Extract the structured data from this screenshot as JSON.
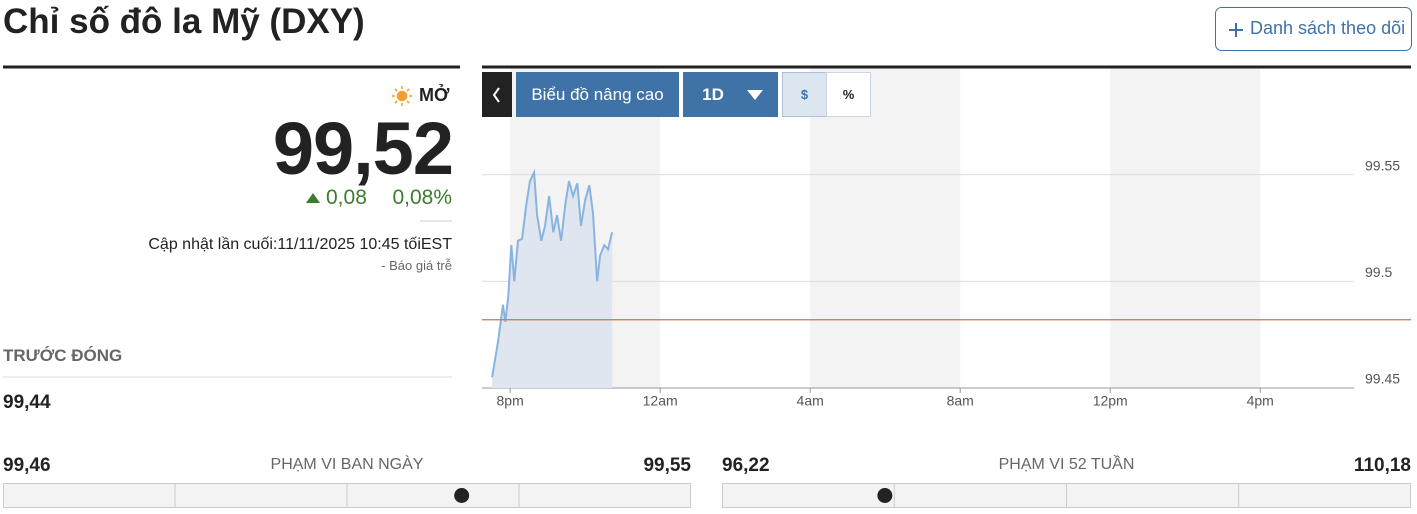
{
  "header": {
    "title": "Chỉ số đô la Mỹ (DXY)",
    "watchlist_button": "Danh sách theo dõi"
  },
  "quote": {
    "status": "MỞ",
    "price": {
      "value": 99.52,
      "label": "99,52"
    },
    "change": "0,08",
    "change_percent": "0,08%",
    "updated": "Cập nhật lần cuối:11/11/2025 10:45 tốiEST",
    "delay_note": "-  Báo giá trễ"
  },
  "previous_close": {
    "label": "TRƯỚC ĐÓNG",
    "value": "99,44"
  },
  "day_range": {
    "label": "PHẠM VI BAN NGÀY",
    "low": {
      "value": 99.46,
      "label": "99,46"
    },
    "high": {
      "value": 99.55,
      "label": "99,55"
    }
  },
  "week52_range": {
    "label": "PHẠM VI 52 TUẦN",
    "low": {
      "value": 96.22,
      "label": "96,22"
    },
    "high": {
      "value": 110.18,
      "label": "110,18"
    }
  },
  "chart_controls": {
    "advanced": "Biểu đồ nâng cao",
    "interval": "1D",
    "dollar": "$",
    "percent": "%"
  },
  "chart_data": {
    "type": "area",
    "color": "#8ab4e0",
    "fill": "#dfe6ef",
    "reference_line": 99.482,
    "reference_color": "#d9703e",
    "x": [
      19.52,
      19.68,
      19.81,
      19.87,
      19.95,
      20.03,
      20.11,
      20.21,
      20.32,
      20.43,
      20.53,
      20.64,
      20.72,
      20.83,
      20.93,
      21.04,
      21.15,
      21.25,
      21.36,
      21.47,
      21.57,
      21.68,
      21.79,
      21.89,
      22.0,
      22.11,
      22.21,
      22.32,
      22.4,
      22.51,
      22.61,
      22.72
    ],
    "values": [
      99.455,
      99.472,
      99.489,
      99.481,
      99.493,
      99.517,
      99.5,
      99.519,
      99.52,
      99.536,
      99.547,
      99.551,
      99.531,
      99.519,
      99.526,
      99.54,
      99.523,
      99.531,
      99.519,
      99.536,
      99.547,
      99.54,
      99.546,
      99.526,
      99.538,
      99.545,
      99.532,
      99.5,
      99.512,
      99.517,
      99.515,
      99.523
    ],
    "xlim": [
      19.25,
      42.5
    ],
    "xticks": [
      {
        "value": 20,
        "label": "8pm"
      },
      {
        "value": 24,
        "label": "12am"
      },
      {
        "value": 28,
        "label": "4am"
      },
      {
        "value": 32,
        "label": "8am"
      },
      {
        "value": 36,
        "label": "12pm"
      },
      {
        "value": 40,
        "label": "4pm"
      }
    ],
    "ylim": [
      99.45,
      99.6
    ],
    "yticks": [
      99.45,
      99.5,
      99.55
    ],
    "grid": true
  }
}
